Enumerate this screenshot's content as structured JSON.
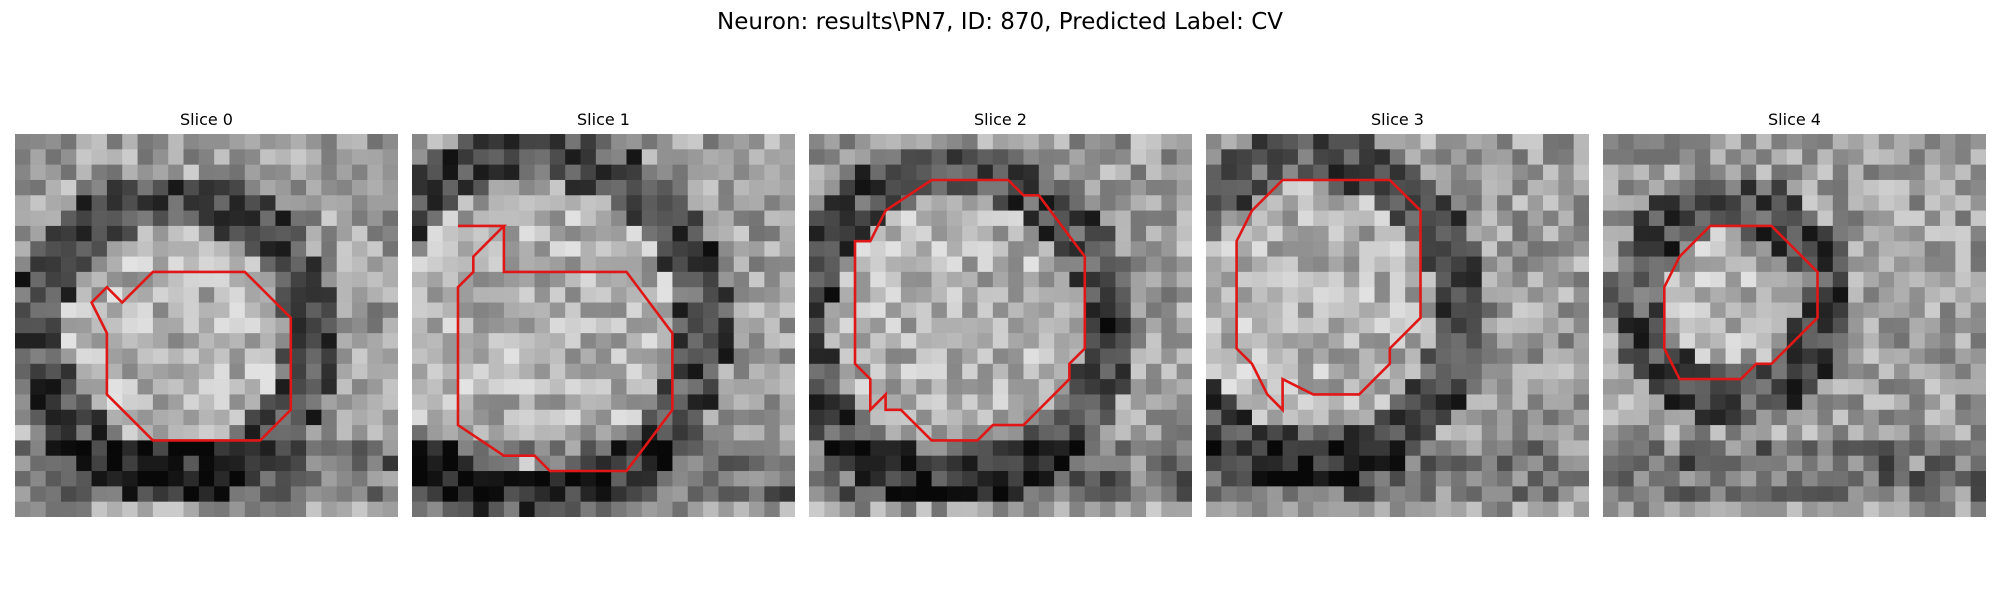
{
  "figure": {
    "title": "Neuron: results\\PN7, ID: 870, Predicted Label: CV"
  },
  "colors": {
    "contour": "#e01717",
    "background": "#ffffff"
  },
  "slices": [
    {
      "label": "Slice 0",
      "seed": 11,
      "contour": [
        [
          10,
          9
        ],
        [
          15,
          9
        ],
        [
          18,
          12
        ],
        [
          18,
          18
        ],
        [
          16,
          20
        ],
        [
          9,
          20
        ],
        [
          6,
          17
        ],
        [
          6,
          13
        ],
        [
          5,
          11
        ],
        [
          6,
          10
        ],
        [
          7,
          11
        ],
        [
          9,
          9
        ]
      ]
    },
    {
      "label": "Slice 1",
      "seed": 29,
      "contour": [
        [
          3,
          6
        ],
        [
          6,
          6
        ],
        [
          6,
          9
        ],
        [
          7,
          9
        ],
        [
          14,
          9
        ],
        [
          17,
          13
        ],
        [
          17,
          18
        ],
        [
          14,
          22
        ],
        [
          9,
          22
        ],
        [
          8,
          21
        ],
        [
          6,
          21
        ],
        [
          3,
          19
        ],
        [
          3,
          10
        ],
        [
          4,
          9
        ],
        [
          4,
          8
        ],
        [
          5,
          7
        ],
        [
          6,
          6
        ]
      ]
    },
    {
      "label": "Slice 2",
      "seed": 47,
      "contour": [
        [
          8,
          3
        ],
        [
          13,
          3
        ],
        [
          14,
          4
        ],
        [
          15,
          4
        ],
        [
          18,
          8
        ],
        [
          18,
          14
        ],
        [
          17,
          15
        ],
        [
          17,
          16
        ],
        [
          16,
          17
        ],
        [
          14,
          19
        ],
        [
          12,
          19
        ],
        [
          11,
          20
        ],
        [
          8,
          20
        ],
        [
          6,
          18
        ],
        [
          5,
          18
        ],
        [
          5,
          17
        ],
        [
          4,
          18
        ],
        [
          4,
          16
        ],
        [
          3,
          15
        ],
        [
          3,
          14
        ],
        [
          3,
          7
        ],
        [
          4,
          7
        ],
        [
          5,
          5
        ],
        [
          8,
          3
        ]
      ]
    },
    {
      "label": "Slice 3",
      "seed": 71,
      "contour": [
        [
          6,
          3
        ],
        [
          12,
          3
        ],
        [
          14,
          5
        ],
        [
          14,
          12
        ],
        [
          12,
          14
        ],
        [
          12,
          15
        ],
        [
          11,
          16
        ],
        [
          10,
          17
        ],
        [
          7,
          17
        ],
        [
          5,
          16
        ],
        [
          5,
          17
        ],
        [
          5,
          18
        ],
        [
          4,
          17
        ],
        [
          3,
          15
        ],
        [
          2,
          14
        ],
        [
          2,
          10
        ],
        [
          2,
          7
        ],
        [
          3,
          5
        ],
        [
          4,
          4
        ],
        [
          5,
          3
        ]
      ]
    },
    {
      "label": "Slice 4",
      "seed": 97,
      "contour": [
        [
          8,
          6
        ],
        [
          11,
          6
        ],
        [
          14,
          9
        ],
        [
          14,
          12
        ],
        [
          11,
          15
        ],
        [
          10,
          15
        ],
        [
          9,
          16
        ],
        [
          5,
          16
        ],
        [
          4,
          14
        ],
        [
          4,
          10
        ],
        [
          5,
          8
        ],
        [
          6,
          7
        ],
        [
          7,
          6
        ]
      ]
    }
  ]
}
